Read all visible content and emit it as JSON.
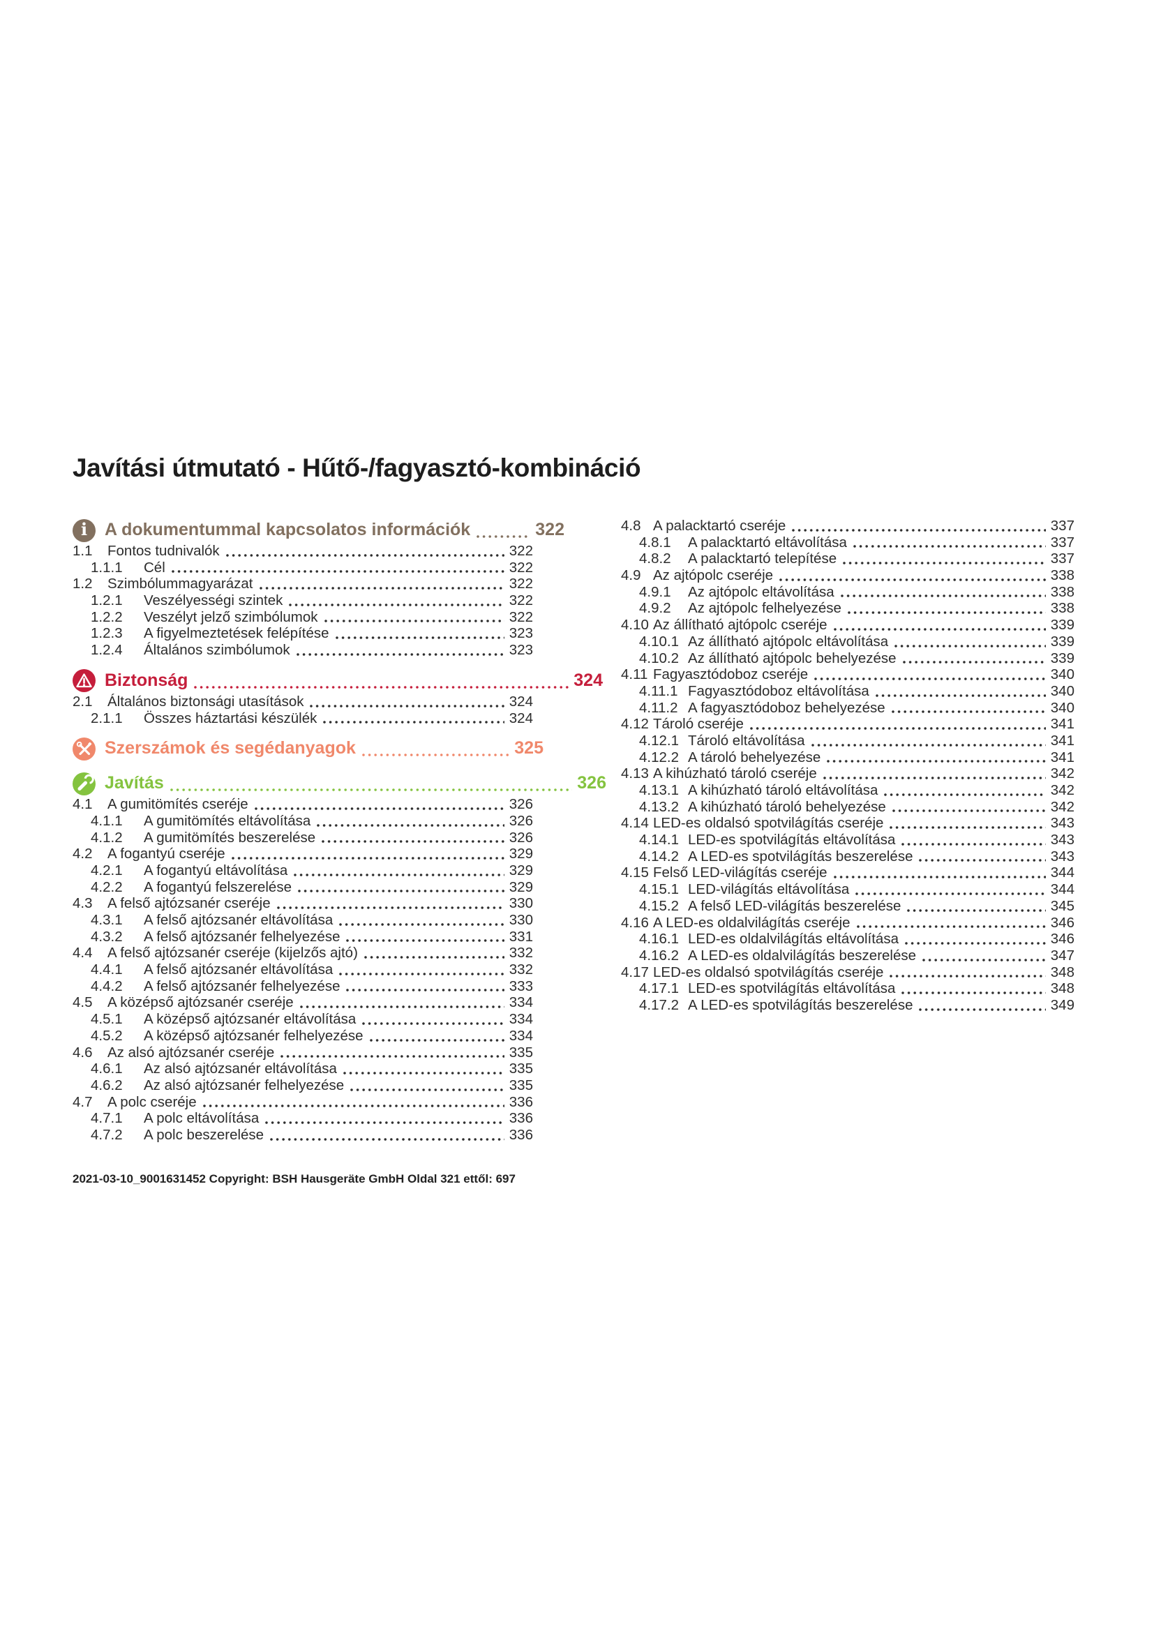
{
  "title": "Javítási útmutató - Hűtő-/fagyasztó-kombináció",
  "footer": "2021-03-10_9001631452 Copyright: BSH Hausgeräte GmbH Oldal 321 ettől: 697",
  "colors": {
    "info": "#82705f",
    "safety": "#c51e3b",
    "tools": "#f0886b",
    "repair": "#84c33f",
    "body": "#2d2d2d"
  },
  "toc": {
    "left": [
      {
        "type": "heading",
        "icon": "info-icon",
        "theme": "info",
        "label": "A dokumentummal kapcsolatos információk",
        "page": "322"
      },
      {
        "type": "l2",
        "num": "1.1",
        "label": "Fontos tudnivalók",
        "page": "322"
      },
      {
        "type": "l3",
        "num": "1.1.1",
        "label": "Cél",
        "page": "322"
      },
      {
        "type": "l2",
        "num": "1.2",
        "label": "Szimbólummagyarázat",
        "page": "322"
      },
      {
        "type": "l3",
        "num": "1.2.1",
        "label": "Veszélyességi szintek",
        "page": "322"
      },
      {
        "type": "l3",
        "num": "1.2.2",
        "label": "Veszélyt jelző szimbólumok",
        "page": "322"
      },
      {
        "type": "l3",
        "num": "1.2.3",
        "label": "A figyelmeztetések felépítése",
        "page": "323"
      },
      {
        "type": "l3",
        "num": "1.2.4",
        "label": "Általános szimbólumok",
        "page": "323"
      },
      {
        "type": "heading",
        "icon": "warning-icon",
        "theme": "safety",
        "label": "Biztonság",
        "page": "324"
      },
      {
        "type": "l2",
        "num": "2.1",
        "label": "Általános biztonsági utasítások",
        "page": "324"
      },
      {
        "type": "l3",
        "num": "2.1.1",
        "label": "Összes háztartási készülék",
        "page": "324"
      },
      {
        "type": "heading",
        "icon": "tools-icon",
        "theme": "tools",
        "label": "Szerszámok és segédanyagok",
        "page": "325"
      },
      {
        "type": "heading",
        "icon": "wrench-icon",
        "theme": "repair",
        "label": "Javítás",
        "page": "326"
      },
      {
        "type": "l2",
        "num": "4.1",
        "label": "A gumitömítés cseréje",
        "page": "326"
      },
      {
        "type": "l3",
        "num": "4.1.1",
        "label": "A gumitömítés eltávolítása",
        "page": "326"
      },
      {
        "type": "l3",
        "num": "4.1.2",
        "label": "A gumitömítés beszerelése",
        "page": "326"
      },
      {
        "type": "l2",
        "num": "4.2",
        "label": "A fogantyú cseréje",
        "page": "329"
      },
      {
        "type": "l3",
        "num": "4.2.1",
        "label": "A fogantyú eltávolítása",
        "page": "329"
      },
      {
        "type": "l3",
        "num": "4.2.2",
        "label": "A fogantyú felszerelése",
        "page": "329"
      },
      {
        "type": "l2",
        "num": "4.3",
        "label": "A felső ajtózsanér cseréje",
        "page": "330"
      },
      {
        "type": "l3",
        "num": "4.3.1",
        "label": "A felső ajtózsanér eltávolítása",
        "page": "330"
      },
      {
        "type": "l3",
        "num": "4.3.2",
        "label": "A felső ajtózsanér felhelyezése",
        "page": "331"
      },
      {
        "type": "l2",
        "num": "4.4",
        "label": "A felső ajtózsanér cseréje (kijelzős ajtó)",
        "page": "332"
      },
      {
        "type": "l3",
        "num": "4.4.1",
        "label": "A felső ajtózsanér eltávolítása",
        "page": "332"
      },
      {
        "type": "l3",
        "num": "4.4.2",
        "label": "A felső ajtózsanér felhelyezése",
        "page": "333"
      },
      {
        "type": "l2",
        "num": "4.5",
        "label": "A középső ajtózsanér cseréje",
        "page": "334"
      },
      {
        "type": "l3",
        "num": "4.5.1",
        "label": "A középső ajtózsanér eltávolítása",
        "page": "334"
      },
      {
        "type": "l3",
        "num": "4.5.2",
        "label": "A középső ajtózsanér felhelyezése",
        "page": "334"
      },
      {
        "type": "l2",
        "num": "4.6",
        "label": "Az alsó ajtózsanér cseréje",
        "page": "335"
      },
      {
        "type": "l3",
        "num": "4.6.1",
        "label": "Az alsó ajtózsanér eltávolítása",
        "page": "335"
      },
      {
        "type": "l3",
        "num": "4.6.2",
        "label": "Az alsó ajtózsanér felhelyezése",
        "page": "335"
      },
      {
        "type": "l2",
        "num": "4.7",
        "label": "A polc cseréje",
        "page": "336"
      },
      {
        "type": "l3",
        "num": "4.7.1",
        "label": "A polc eltávolítása",
        "page": "336"
      },
      {
        "type": "l3",
        "num": "4.7.2",
        "label": "A polc beszerelése",
        "page": "336"
      }
    ],
    "right": [
      {
        "type": "l2",
        "num": "4.8",
        "label": "A palacktartó cseréje",
        "page": "337"
      },
      {
        "type": "l3",
        "num": "4.8.1",
        "label": "A palacktartó eltávolítása",
        "page": "337"
      },
      {
        "type": "l3",
        "num": "4.8.2",
        "label": "A palacktartó telepítése",
        "page": "337"
      },
      {
        "type": "l2",
        "num": "4.9",
        "label": "Az ajtópolc cseréje",
        "page": "338"
      },
      {
        "type": "l3",
        "num": "4.9.1",
        "label": "Az ajtópolc eltávolítása",
        "page": "338"
      },
      {
        "type": "l3",
        "num": "4.9.2",
        "label": "Az ajtópolc felhelyezése",
        "page": "338"
      },
      {
        "type": "l2",
        "num": "4.10",
        "label": "Az állítható ajtópolc cseréje",
        "page": "339"
      },
      {
        "type": "l3",
        "num": "4.10.1",
        "label": "Az állítható ajtópolc eltávolítása",
        "page": "339"
      },
      {
        "type": "l3",
        "num": "4.10.2",
        "label": "Az állítható ajtópolc behelyezése",
        "page": "339"
      },
      {
        "type": "l2",
        "num": "4.11",
        "label": "Fagyasztódoboz cseréje",
        "page": "340"
      },
      {
        "type": "l3",
        "num": "4.11.1",
        "label": "Fagyasztódoboz eltávolítása",
        "page": "340"
      },
      {
        "type": "l3",
        "num": "4.11.2",
        "label": "A fagyasztódoboz behelyezése",
        "page": "340"
      },
      {
        "type": "l2",
        "num": "4.12",
        "label": "Tároló cseréje",
        "page": "341"
      },
      {
        "type": "l3",
        "num": "4.12.1",
        "label": "Tároló eltávolítása",
        "page": "341"
      },
      {
        "type": "l3",
        "num": "4.12.2",
        "label": "A tároló behelyezése",
        "page": "341"
      },
      {
        "type": "l2",
        "num": "4.13",
        "label": "A kihúzható tároló cseréje",
        "page": "342"
      },
      {
        "type": "l3",
        "num": "4.13.1",
        "label": "A kihúzható tároló eltávolítása",
        "page": "342"
      },
      {
        "type": "l3",
        "num": "4.13.2",
        "label": "A kihúzható tároló behelyezése",
        "page": "342"
      },
      {
        "type": "l2",
        "num": "4.14",
        "label": "LED-es oldalsó spotvilágítás cseréje",
        "page": "343"
      },
      {
        "type": "l3",
        "num": "4.14.1",
        "label": "LED-es spotvilágítás eltávolítása",
        "page": "343"
      },
      {
        "type": "l3",
        "num": "4.14.2",
        "label": "A LED-es spotvilágítás beszerelése",
        "page": "343"
      },
      {
        "type": "l2",
        "num": "4.15",
        "label": "Felső LED-világítás cseréje",
        "page": "344"
      },
      {
        "type": "l3",
        "num": "4.15.1",
        "label": "LED-világítás eltávolítása",
        "page": "344"
      },
      {
        "type": "l3",
        "num": "4.15.2",
        "label": "A felső LED-világítás beszerelése",
        "page": "345"
      },
      {
        "type": "l2",
        "num": "4.16",
        "label": "A LED-es oldalvilágítás cseréje",
        "page": "346"
      },
      {
        "type": "l3",
        "num": "4.16.1",
        "label": "LED-es oldalvilágítás eltávolítása",
        "page": "346"
      },
      {
        "type": "l3",
        "num": "4.16.2",
        "label": "A LED-es oldalvilágítás beszerelése",
        "page": "347"
      },
      {
        "type": "l2",
        "num": "4.17",
        "label": "LED-es oldalsó spotvilágítás cseréje",
        "page": "348"
      },
      {
        "type": "l3",
        "num": "4.17.1",
        "label": "LED-es spotvilágítás eltávolítása",
        "page": "348"
      },
      {
        "type": "l3",
        "num": "4.17.2",
        "label": "A LED-es spotvilágítás beszerelése",
        "page": "349"
      }
    ]
  }
}
